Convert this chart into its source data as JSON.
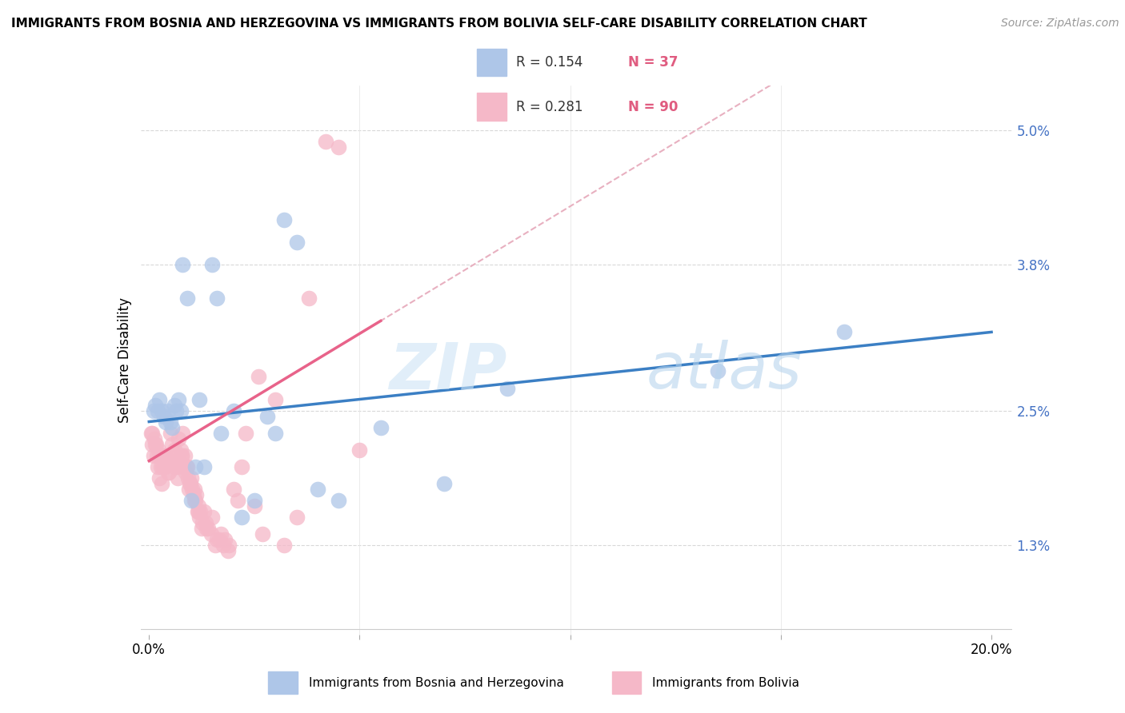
{
  "title": "IMMIGRANTS FROM BOSNIA AND HERZEGOVINA VS IMMIGRANTS FROM BOLIVIA SELF-CARE DISABILITY CORRELATION CHART",
  "source": "Source: ZipAtlas.com",
  "ylabel": "Self-Care Disability",
  "ytick_vals": [
    5.0,
    3.8,
    2.5,
    1.3
  ],
  "ymin": 0.5,
  "ymax": 5.4,
  "xmin": -0.2,
  "xmax": 20.5,
  "watermark_zip": "ZIP",
  "watermark_atlas": "atlas",
  "series1_label": "Immigrants from Bosnia and Herzegovina",
  "series2_label": "Immigrants from Bolivia",
  "series1_color": "#aec6e8",
  "series2_color": "#f5b8c8",
  "line1_color": "#3b7fc4",
  "line2_color": "#e8638a",
  "dashed_color": "#e8b0c0",
  "bos_x": [
    0.1,
    0.15,
    0.2,
    0.25,
    0.3,
    0.35,
    0.4,
    0.45,
    0.5,
    0.55,
    0.6,
    0.65,
    0.7,
    0.75,
    0.8,
    0.9,
    1.0,
    1.1,
    1.5,
    1.6,
    1.7,
    2.0,
    2.5,
    3.0,
    3.2,
    3.5,
    4.0,
    4.5,
    5.5,
    7.0,
    8.5,
    13.5,
    16.5,
    1.2,
    1.3,
    2.2,
    2.8
  ],
  "bos_y": [
    2.5,
    2.55,
    2.5,
    2.6,
    2.5,
    2.45,
    2.4,
    2.5,
    2.4,
    2.35,
    2.55,
    2.5,
    2.6,
    2.5,
    3.8,
    3.5,
    1.7,
    2.0,
    3.8,
    3.5,
    2.3,
    2.5,
    1.7,
    2.3,
    4.2,
    4.0,
    1.8,
    1.7,
    2.35,
    1.85,
    2.7,
    2.85,
    3.2,
    2.6,
    2.0,
    1.55,
    2.45
  ],
  "bol_x": [
    0.05,
    0.08,
    0.1,
    0.12,
    0.15,
    0.18,
    0.2,
    0.22,
    0.25,
    0.28,
    0.3,
    0.32,
    0.35,
    0.38,
    0.4,
    0.42,
    0.45,
    0.48,
    0.5,
    0.52,
    0.55,
    0.58,
    0.6,
    0.62,
    0.65,
    0.68,
    0.7,
    0.72,
    0.75,
    0.78,
    0.8,
    0.82,
    0.85,
    0.88,
    0.9,
    0.92,
    0.95,
    0.98,
    1.0,
    1.02,
    1.05,
    1.08,
    1.1,
    1.12,
    1.15,
    1.18,
    1.2,
    1.22,
    1.25,
    1.3,
    1.35,
    1.4,
    1.5,
    1.6,
    1.7,
    1.8,
    1.9,
    2.0,
    2.1,
    2.2,
    2.3,
    2.5,
    2.6,
    2.7,
    3.0,
    3.2,
    3.5,
    3.8,
    4.2,
    4.5,
    5.0,
    0.07,
    0.17,
    0.27,
    0.37,
    0.47,
    0.57,
    0.67,
    0.77,
    0.87,
    0.97,
    1.07,
    1.17,
    1.27,
    1.37,
    1.47,
    1.57,
    1.67,
    1.77,
    1.87
  ],
  "bol_y": [
    2.3,
    2.2,
    2.1,
    2.25,
    2.2,
    2.1,
    2.0,
    2.15,
    1.9,
    2.0,
    1.85,
    2.0,
    2.0,
    2.1,
    2.1,
    2.05,
    1.95,
    2.05,
    2.3,
    2.1,
    2.2,
    2.05,
    2.15,
    2.0,
    2.05,
    2.0,
    2.25,
    2.05,
    2.15,
    2.1,
    2.3,
    2.0,
    2.1,
    2.0,
    2.0,
    1.9,
    1.8,
    1.85,
    1.9,
    1.8,
    1.75,
    1.8,
    1.7,
    1.75,
    1.6,
    1.65,
    1.55,
    1.6,
    1.45,
    1.6,
    1.5,
    1.45,
    1.55,
    1.35,
    1.4,
    1.35,
    1.3,
    1.8,
    1.7,
    2.0,
    2.3,
    1.65,
    2.8,
    1.4,
    2.6,
    1.3,
    1.55,
    3.5,
    4.9,
    4.85,
    2.15,
    2.3,
    2.2,
    2.1,
    2.0,
    1.95,
    2.05,
    1.9,
    2.1,
    1.95,
    1.85,
    1.7,
    1.6,
    1.5,
    1.45,
    1.4,
    1.3,
    1.35,
    1.3,
    1.25
  ]
}
